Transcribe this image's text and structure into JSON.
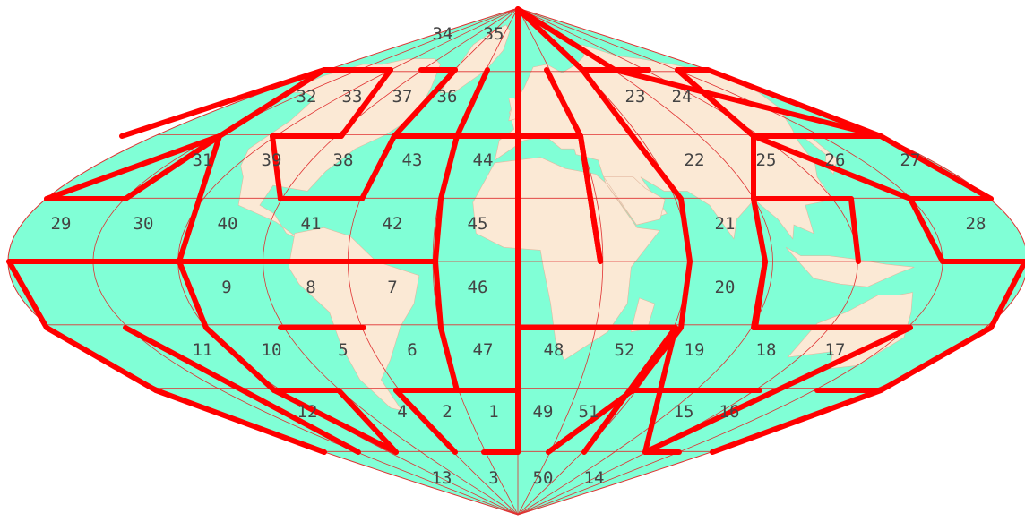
{
  "map": {
    "projection": "sinusoidal",
    "colors": {
      "ocean": "#80ffd6",
      "land": "#fbe9d5",
      "graticule": "#e03030",
      "boundary": "#ff0000",
      "label": "#444444"
    },
    "zone_labels": [
      "1",
      "2",
      "3",
      "4",
      "5",
      "6",
      "7",
      "8",
      "9",
      "10",
      "11",
      "12",
      "13",
      "14",
      "15",
      "16",
      "17",
      "18",
      "19",
      "20",
      "21",
      "22",
      "23",
      "24",
      "25",
      "26",
      "27",
      "28",
      "29",
      "30",
      "31",
      "32",
      "33",
      "34",
      "35",
      "36",
      "37",
      "38",
      "39",
      "40",
      "41",
      "42",
      "43",
      "44",
      "45",
      "46",
      "47",
      "48",
      "49",
      "50",
      "51",
      "52"
    ]
  }
}
